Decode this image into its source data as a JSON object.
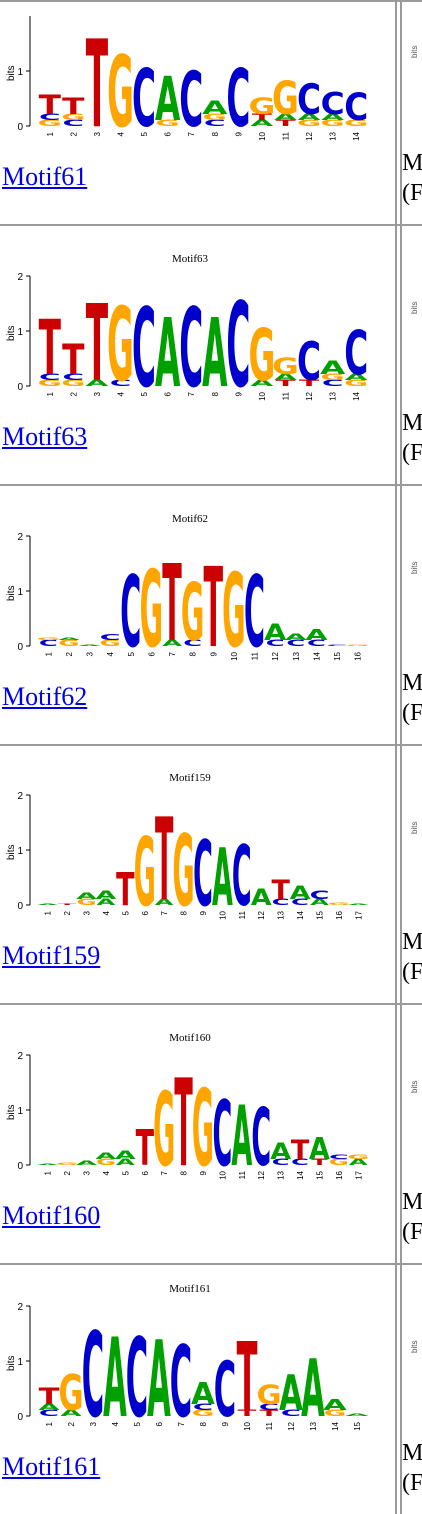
{
  "rows": [
    {
      "link": "Motif61",
      "title": "",
      "ylabel": "bits",
      "yticks": [
        "0",
        "1"
      ],
      "positions": [
        "1",
        "2",
        "3",
        "4",
        "5",
        "6",
        "7",
        "8",
        "9",
        "10",
        "11",
        "12",
        "13",
        "14"
      ],
      "side_label_1": "M",
      "side_label_2": "(F",
      "side_bits": "bits"
    },
    {
      "link": "Motif63",
      "title": "Motif63",
      "ylabel": "bits",
      "yticks": [
        "0",
        "1",
        "2"
      ],
      "positions": [
        "1",
        "2",
        "3",
        "4",
        "5",
        "6",
        "7",
        "8",
        "9",
        "10",
        "11",
        "12",
        "13",
        "14"
      ],
      "side_label_1": "M",
      "side_label_2": "(F",
      "side_bits": "bits"
    },
    {
      "link": "Motif62",
      "title": "Motif62",
      "ylabel": "bits",
      "yticks": [
        "0",
        "1",
        "2"
      ],
      "positions": [
        "1",
        "2",
        "3",
        "4",
        "5",
        "6",
        "7",
        "8",
        "9",
        "10",
        "11",
        "12",
        "13",
        "14",
        "15",
        "16"
      ],
      "side_label_1": "M",
      "side_label_2": "(F",
      "side_bits": "bits"
    },
    {
      "link": "Motif159",
      "title": "Motif159",
      "ylabel": "bits",
      "yticks": [
        "0",
        "1",
        "2"
      ],
      "positions": [
        "1",
        "2",
        "3",
        "4",
        "5",
        "6",
        "7",
        "8",
        "9",
        "10",
        "11",
        "12",
        "13",
        "14",
        "15",
        "16",
        "17"
      ],
      "side_label_1": "M",
      "side_label_2": "(F",
      "side_bits": "bits"
    },
    {
      "link": "Motif160",
      "title": "Motif160",
      "ylabel": "bits",
      "yticks": [
        "0",
        "1",
        "2"
      ],
      "positions": [
        "1",
        "2",
        "3",
        "4",
        "5",
        "6",
        "7",
        "8",
        "9",
        "10",
        "11",
        "12",
        "13",
        "14",
        "15",
        "16",
        "17"
      ],
      "side_label_1": "M",
      "side_label_2": "(F",
      "side_bits": "bits"
    },
    {
      "link": "Motif161",
      "title": "Motif161",
      "ylabel": "bits",
      "yticks": [
        "0",
        "1",
        "2"
      ],
      "positions": [
        "1",
        "2",
        "3",
        "4",
        "5",
        "6",
        "7",
        "8",
        "9",
        "10",
        "11",
        "12",
        "13",
        "14",
        "15"
      ],
      "side_label_1": "M",
      "side_label_2": "(F",
      "side_bits": "bits"
    }
  ],
  "letter_colors": {
    "A": "#00a000",
    "C": "#0000cc",
    "G": "#ffa500",
    "T": "#cc0000"
  },
  "logos": [
    {
      "main": [
        "T",
        "T",
        "T",
        "G",
        "C",
        "A",
        "C",
        "A",
        "C",
        "G",
        "G",
        "C",
        "C",
        "C"
      ],
      "heights": [
        0.35,
        0.3,
        1.6,
        1.3,
        1.05,
        0.8,
        1.0,
        0.25,
        1.05,
        0.3,
        0.6,
        0.55,
        0.4,
        0.5
      ],
      "minor": [
        [
          "G",
          "C"
        ],
        [
          "C",
          "G"
        ],
        [],
        [],
        [],
        [
          "G"
        ],
        [],
        [
          "C",
          "G"
        ],
        [],
        [
          "A",
          "T"
        ],
        [
          "T",
          "A"
        ],
        [
          "G",
          "A"
        ],
        [
          "G",
          "A"
        ],
        [
          "G"
        ]
      ]
    },
    {
      "main": [
        "T",
        "T",
        "T",
        "G",
        "C",
        "A",
        "C",
        "A",
        "C",
        "G",
        "G",
        "C",
        "A",
        "C"
      ],
      "heights": [
        1.0,
        0.55,
        1.4,
        1.35,
        1.45,
        1.25,
        1.45,
        1.25,
        1.55,
        0.95,
        0.3,
        0.7,
        0.25,
        0.8
      ],
      "minor": [
        [
          "G",
          "C"
        ],
        [
          "G",
          "C"
        ],
        [
          "A"
        ],
        [
          "C"
        ],
        [],
        [],
        [],
        [],
        [],
        [
          "A"
        ],
        [
          "T",
          "A"
        ],
        [
          "T"
        ],
        [
          "C",
          "G"
        ],
        [
          "G",
          "A"
        ]
      ]
    },
    {
      "main": [
        "G",
        "A",
        "A",
        "C",
        "C",
        "G",
        "T",
        "G",
        "T",
        "G",
        "C",
        "A",
        "A",
        "A",
        "C",
        "G"
      ],
      "heights": [
        0.05,
        0.04,
        0.02,
        0.1,
        1.3,
        1.4,
        1.4,
        1.05,
        1.45,
        1.35,
        1.3,
        0.3,
        0.12,
        0.2,
        0.02,
        0.02
      ],
      "minor": [
        [
          "C"
        ],
        [
          "G"
        ],
        [],
        [
          "G"
        ],
        [],
        [],
        [
          "A"
        ],
        [
          "C"
        ],
        [],
        [],
        [],
        [
          "C"
        ],
        [
          "C"
        ],
        [
          "C"
        ],
        [],
        []
      ]
    },
    {
      "main": [
        "A",
        "T",
        "A",
        "A",
        "T",
        "G",
        "T",
        "G",
        "C",
        "A",
        "C",
        "A",
        "T",
        "A",
        "C",
        "G",
        "A"
      ],
      "heights": [
        0.02,
        0.02,
        0.12,
        0.15,
        0.6,
        1.25,
        1.5,
        1.3,
        1.2,
        1.05,
        1.1,
        0.3,
        0.35,
        0.25,
        0.15,
        0.05,
        0.02
      ],
      "minor": [
        [],
        [],
        [
          "G"
        ],
        [
          "A"
        ],
        [],
        [],
        [
          "A"
        ],
        [],
        [],
        [],
        [],
        [],
        [
          "C"
        ],
        [
          "C"
        ],
        [
          "A"
        ],
        [],
        []
      ]
    },
    {
      "main": [
        "A",
        "G",
        "A",
        "A",
        "A",
        "T",
        "G",
        "T",
        "G",
        "C",
        "A",
        "C",
        "A",
        "T",
        "A",
        "C",
        "G"
      ],
      "heights": [
        0.02,
        0.05,
        0.08,
        0.12,
        0.15,
        0.65,
        1.35,
        1.6,
        1.4,
        1.2,
        1.1,
        1.05,
        0.3,
        0.35,
        0.4,
        0.08,
        0.08
      ],
      "minor": [
        [],
        [],
        [],
        [
          "G"
        ],
        [
          "A"
        ],
        [],
        [],
        [],
        [],
        [],
        [],
        [],
        [
          "C"
        ],
        [
          "C"
        ],
        [
          "T"
        ],
        [
          "G"
        ],
        [
          "A"
        ]
      ]
    },
    {
      "main": [
        "T",
        "G",
        "C",
        "A",
        "C",
        "A",
        "C",
        "A",
        "C",
        "T",
        "G",
        "A",
        "A",
        "A",
        "A"
      ],
      "heights": [
        0.3,
        0.65,
        1.55,
        1.45,
        1.45,
        1.4,
        1.3,
        0.4,
        1.0,
        1.25,
        0.35,
        0.65,
        1.05,
        0.2,
        0.05
      ],
      "minor": [
        [
          "C",
          "A"
        ],
        [
          "A"
        ],
        [],
        [],
        [],
        [],
        [],
        [
          "G",
          "C"
        ],
        [],
        [
          "T"
        ],
        [
          "T",
          "C"
        ],
        [
          "C"
        ],
        [],
        [
          "G"
        ],
        []
      ]
    }
  ]
}
